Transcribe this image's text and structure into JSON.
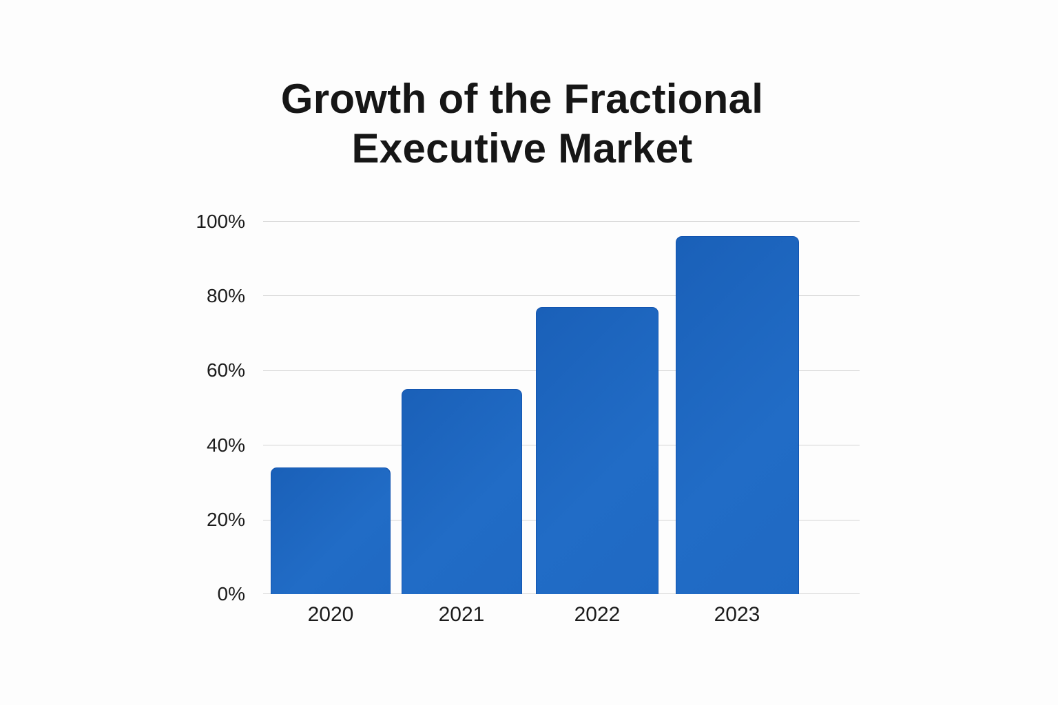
{
  "chart_data": {
    "type": "bar",
    "title": "Growth of the Fractional Executive Market",
    "title_lines": [
      "Growth of the Fractional",
      "Executive Market"
    ],
    "categories": [
      "2020",
      "2021",
      "2022",
      "2023"
    ],
    "values": [
      34,
      55,
      77,
      96
    ],
    "unit": "%",
    "xlabel": "",
    "ylabel": "",
    "ylim": [
      0,
      100
    ],
    "yticks": [
      "0%",
      "20%",
      "40%",
      "60%",
      "80%",
      "100%"
    ],
    "grid": true,
    "legend": null,
    "bar_color": "#1f67c1"
  }
}
